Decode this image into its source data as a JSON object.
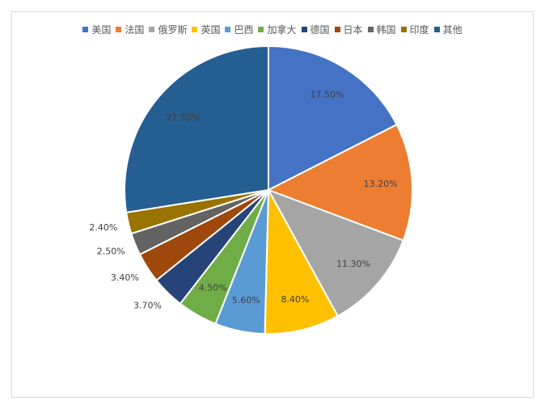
{
  "chart_data": {
    "type": "pie",
    "categories": [
      "美国",
      "法国",
      "俄罗斯",
      "英国",
      "巴西",
      "加拿大",
      "德国",
      "日本",
      "韩国",
      "印度",
      "其他"
    ],
    "values": [
      17.5,
      13.2,
      11.3,
      8.4,
      5.6,
      4.5,
      3.7,
      3.4,
      2.5,
      2.4,
      27.5
    ],
    "labels": [
      "17.50%",
      "13.20%",
      "11.30%",
      "8.40%",
      "5.60%",
      "4.50%",
      "3.70%",
      "3.40%",
      "2.50%",
      "2.40%",
      "27.50%"
    ],
    "colors": [
      "#4472c4",
      "#ed7d31",
      "#a5a5a5",
      "#ffc000",
      "#5b9bd5",
      "#70ad47",
      "#264478",
      "#9e480e",
      "#636363",
      "#997300",
      "#255e91"
    ],
    "legend_position": "top",
    "start_angle": "12 o'clock",
    "direction": "clockwise"
  }
}
